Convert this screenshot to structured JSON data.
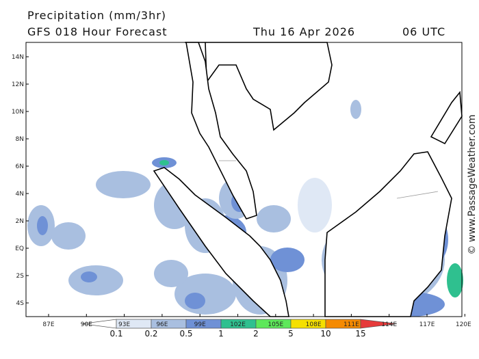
{
  "header": {
    "title": "Precipitation (mm/3hr)",
    "subtitle": "GFS 018 Hour Forecast",
    "date": "Thu 16 Apr 2026",
    "time": "06 UTC"
  },
  "map": {
    "lon_labels": [
      "87E",
      "90E",
      "93E",
      "96E",
      "99E",
      "102E",
      "105E",
      "108E",
      "111E",
      "114E",
      "117E",
      "120E"
    ],
    "lat_labels": [
      "14N",
      "12N",
      "10N",
      "8N",
      "6N",
      "4N",
      "2N",
      "EQ",
      "2S",
      "4S"
    ]
  },
  "legend": {
    "labels": [
      0.1,
      0.2,
      0.5,
      1,
      2,
      5,
      10,
      15
    ],
    "colors": [
      "#ffffff",
      "#dfe8f5",
      "#a9bfe0",
      "#6f91d6",
      "#2fc08f",
      "#5ee85a",
      "#f5e000",
      "#f58a00",
      "#e63a3a"
    ]
  },
  "credit": "© www.PassageWeather.com"
}
